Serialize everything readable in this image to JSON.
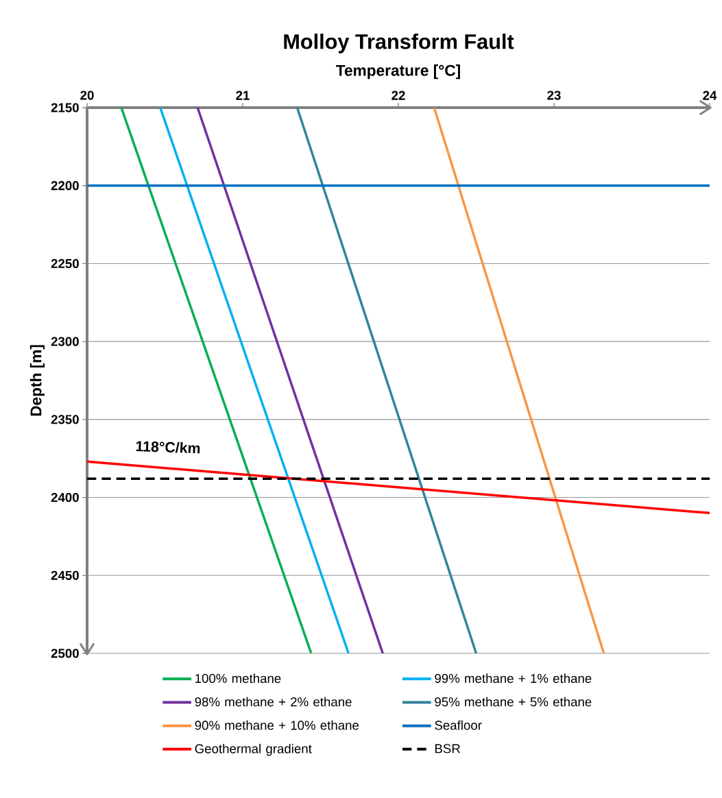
{
  "chart_data": {
    "type": "line",
    "title": "Molloy Transform Fault",
    "xlabel": "Temperature [°C]",
    "ylabel": "Depth [m]",
    "xlim": [
      20,
      24
    ],
    "xticks": [
      20,
      21,
      22,
      23,
      24
    ],
    "ylim": [
      2500,
      2150
    ],
    "yticks": [
      2150,
      2200,
      2250,
      2300,
      2350,
      2400,
      2450,
      2500
    ],
    "grid": "y",
    "legend": "bottom",
    "marker": "none",
    "annotations": [
      "118°C/km"
    ],
    "series": [
      {
        "name": "100% methane",
        "color": "#00b050",
        "x": [
          20.22,
          21.44
        ],
        "values": [
          2150,
          2500
        ]
      },
      {
        "name": "99% methane + 1% ethane",
        "color": "#00b0f0",
        "x": [
          20.47,
          21.68
        ],
        "values": [
          2150,
          2500
        ]
      },
      {
        "name": "98% methane + 2% ethane",
        "color": "#7030a0",
        "x": [
          20.71,
          21.9
        ],
        "values": [
          2150,
          2500
        ]
      },
      {
        "name": "95% methane + 5% ethane",
        "color": "#31849b",
        "x": [
          21.35,
          22.5
        ],
        "values": [
          2150,
          2500
        ]
      },
      {
        "name": "90% methane + 10% ethane",
        "color": "#f79646",
        "x": [
          22.23,
          23.32
        ],
        "values": [
          2150,
          2500
        ]
      },
      {
        "name": "Seafloor",
        "color": "#0070c0",
        "x": [
          20,
          24
        ],
        "values": [
          2200,
          2200
        ]
      },
      {
        "name": "Geothermal gradient",
        "color": "#ff0000",
        "x": [
          20,
          24
        ],
        "values": [
          2377,
          2410
        ]
      },
      {
        "name": "BSR",
        "color": "#000000",
        "x": [
          20,
          24
        ],
        "values": [
          2388,
          2388
        ],
        "line_style": "dashed"
      }
    ]
  }
}
